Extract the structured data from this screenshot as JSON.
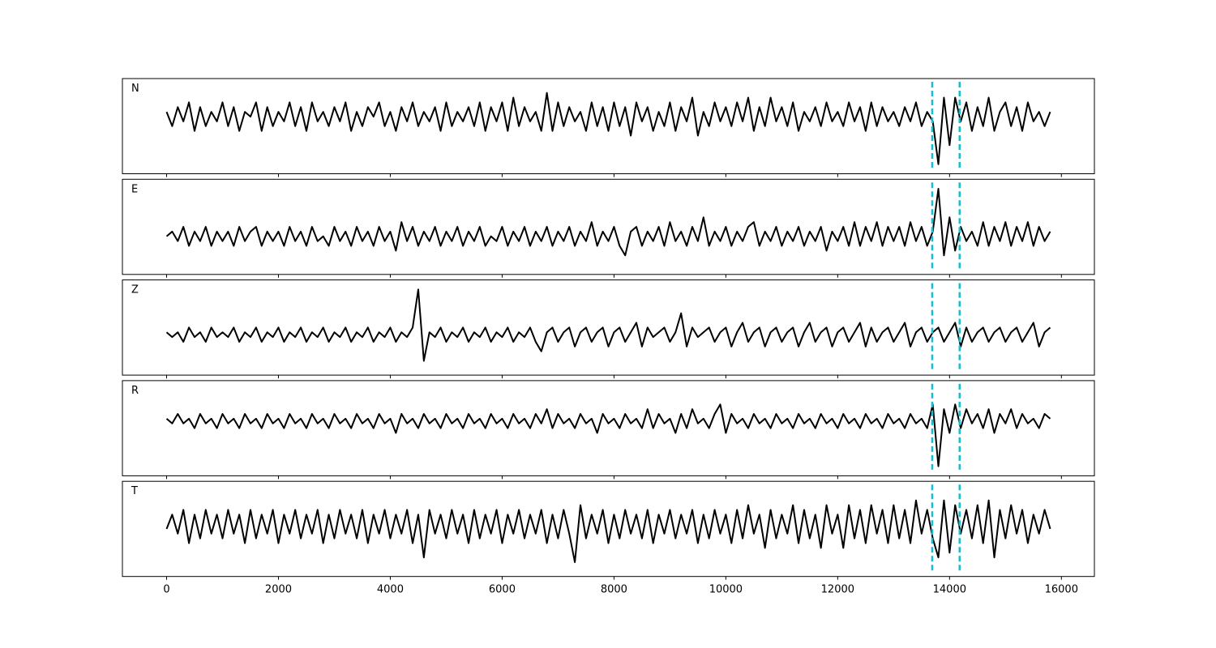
{
  "chart_data": {
    "type": "line",
    "subplots": "stacked",
    "x": [
      0,
      100,
      200,
      300,
      400,
      500,
      600,
      700,
      800,
      900,
      1000,
      1100,
      1200,
      1300,
      1400,
      1500,
      1600,
      1700,
      1800,
      1900,
      2000,
      2100,
      2200,
      2300,
      2400,
      2500,
      2600,
      2700,
      2800,
      2900,
      3000,
      3100,
      3200,
      3300,
      3400,
      3500,
      3600,
      3700,
      3800,
      3900,
      4000,
      4100,
      4200,
      4300,
      4400,
      4500,
      4600,
      4700,
      4800,
      4900,
      5000,
      5100,
      5200,
      5300,
      5400,
      5500,
      5600,
      5700,
      5800,
      5900,
      6000,
      6100,
      6200,
      6300,
      6400,
      6500,
      6600,
      6700,
      6800,
      6900,
      7000,
      7100,
      7200,
      7300,
      7400,
      7500,
      7600,
      7700,
      7800,
      7900,
      8000,
      8100,
      8200,
      8300,
      8400,
      8500,
      8600,
      8700,
      8800,
      8900,
      9000,
      9100,
      9200,
      9300,
      9400,
      9500,
      9600,
      9700,
      9800,
      9900,
      10000,
      10100,
      10200,
      10300,
      10400,
      10500,
      10600,
      10700,
      10800,
      10900,
      11000,
      11100,
      11200,
      11300,
      11400,
      11500,
      11600,
      11700,
      11800,
      11900,
      12000,
      12100,
      12200,
      12300,
      12400,
      12500,
      12600,
      12700,
      12800,
      12900,
      13000,
      13100,
      13200,
      13300,
      13400,
      13500,
      13600,
      13700,
      13800,
      13900,
      14000,
      14100,
      14200,
      14300,
      14400,
      14500,
      14600,
      14700,
      14800,
      14900,
      15000,
      15100,
      15200,
      15300,
      15400,
      15500,
      15600,
      15700,
      15800
    ],
    "series": [
      {
        "name": "N",
        "color": "#000000",
        "values": [
          3,
          0,
          4,
          1,
          5,
          -1,
          4,
          0,
          3,
          1,
          5,
          0,
          4,
          -1,
          3,
          2,
          5,
          -1,
          4,
          0,
          3,
          1,
          5,
          0,
          4,
          -1,
          5,
          1,
          3,
          0,
          4,
          1,
          5,
          -1,
          3,
          0,
          4,
          2,
          5,
          0,
          3,
          -1,
          4,
          1,
          5,
          0,
          3,
          1,
          4,
          -1,
          5,
          0,
          3,
          1,
          4,
          0,
          5,
          -1,
          4,
          1,
          5,
          -1,
          6,
          0,
          4,
          1,
          3,
          -1,
          7,
          -1,
          5,
          0,
          4,
          1,
          3,
          -1,
          5,
          0,
          4,
          -1,
          5,
          0,
          4,
          -2,
          5,
          1,
          4,
          -1,
          3,
          0,
          5,
          -1,
          4,
          1,
          6,
          -2,
          3,
          0,
          5,
          1,
          4,
          0,
          5,
          1,
          6,
          -1,
          4,
          0,
          6,
          1,
          4,
          0,
          5,
          -1,
          3,
          1,
          4,
          0,
          5,
          1,
          3,
          0,
          5,
          1,
          4,
          -1,
          5,
          0,
          4,
          1,
          3,
          0,
          4,
          1,
          5,
          0,
          3,
          1,
          -8,
          6,
          -4,
          6,
          1,
          5,
          -1,
          4,
          0,
          6,
          -1,
          3,
          5,
          0,
          4,
          -1,
          5,
          1,
          3,
          0,
          3
        ]
      },
      {
        "name": "E",
        "color": "#000000",
        "values": [
          -2,
          -1,
          -3,
          0,
          -4,
          -1,
          -3,
          0,
          -4,
          -1,
          -3,
          -1,
          -4,
          0,
          -3,
          -1,
          0,
          -4,
          -1,
          -3,
          -1,
          -4,
          0,
          -3,
          -1,
          -4,
          0,
          -3,
          -2,
          -4,
          0,
          -3,
          -1,
          -4,
          0,
          -3,
          -1,
          -4,
          0,
          -3,
          -1,
          -5,
          1,
          -3,
          0,
          -4,
          -1,
          -3,
          0,
          -4,
          -1,
          -3,
          0,
          -4,
          -1,
          -3,
          0,
          -4,
          -2,
          -3,
          0,
          -4,
          -1,
          -3,
          0,
          -4,
          -1,
          -3,
          0,
          -4,
          -1,
          -3,
          0,
          -4,
          -1,
          -3,
          1,
          -4,
          -1,
          -3,
          0,
          -4,
          -6,
          -1,
          0,
          -4,
          -1,
          -3,
          0,
          -4,
          1,
          -3,
          -1,
          -4,
          0,
          -3,
          2,
          -4,
          -1,
          -3,
          0,
          -4,
          -1,
          -3,
          0,
          1,
          -4,
          -1,
          -3,
          0,
          -4,
          -1,
          -3,
          0,
          -4,
          -1,
          -3,
          0,
          -5,
          -1,
          -3,
          0,
          -4,
          1,
          -4,
          0,
          -3,
          1,
          -4,
          0,
          -3,
          0,
          -4,
          1,
          -3,
          0,
          -4,
          -1,
          8,
          -6,
          2,
          -5,
          0,
          -3,
          -1,
          -4,
          1,
          -4,
          0,
          -3,
          1,
          -4,
          0,
          -3,
          1,
          -4,
          0,
          -3,
          -1
        ]
      },
      {
        "name": "Z",
        "color": "#000000",
        "values": [
          -1,
          -2,
          -1,
          -3,
          0,
          -2,
          -1,
          -3,
          0,
          -2,
          -1,
          -2,
          0,
          -3,
          -1,
          -2,
          0,
          -3,
          -1,
          -2,
          0,
          -3,
          -1,
          -2,
          0,
          -3,
          -1,
          -2,
          0,
          -3,
          -1,
          -2,
          0,
          -3,
          -1,
          -2,
          0,
          -3,
          -1,
          -2,
          0,
          -3,
          -1,
          -2,
          0,
          8,
          -7,
          -1,
          -2,
          0,
          -3,
          -1,
          -2,
          0,
          -3,
          -1,
          -2,
          0,
          -3,
          -1,
          -2,
          0,
          -3,
          -1,
          -2,
          0,
          -3,
          -5,
          -1,
          0,
          -3,
          -1,
          0,
          -4,
          -1,
          0,
          -3,
          -1,
          0,
          -4,
          -1,
          0,
          -3,
          -1,
          1,
          -4,
          0,
          -2,
          -1,
          0,
          -3,
          -1,
          3,
          -4,
          0,
          -2,
          -1,
          0,
          -3,
          -1,
          0,
          -4,
          -1,
          1,
          -3,
          -1,
          0,
          -4,
          -1,
          0,
          -3,
          -1,
          0,
          -4,
          -1,
          1,
          -3,
          -1,
          0,
          -4,
          -1,
          0,
          -3,
          -1,
          1,
          -4,
          0,
          -3,
          -1,
          0,
          -3,
          -1,
          1,
          -4,
          -1,
          0,
          -3,
          -1,
          0,
          -3,
          -1,
          1,
          -4,
          0,
          -3,
          -1,
          0,
          -3,
          -1,
          0,
          -3,
          -1,
          0,
          -3,
          -1,
          1,
          -4,
          -1,
          0
        ]
      },
      {
        "name": "R",
        "color": "#000000",
        "values": [
          2,
          1,
          3,
          1,
          2,
          0,
          3,
          1,
          2,
          0,
          3,
          1,
          2,
          0,
          3,
          1,
          2,
          0,
          3,
          1,
          2,
          0,
          3,
          1,
          2,
          0,
          3,
          1,
          2,
          0,
          3,
          1,
          2,
          0,
          3,
          1,
          2,
          0,
          3,
          1,
          2,
          -1,
          3,
          1,
          2,
          0,
          3,
          1,
          2,
          0,
          3,
          1,
          2,
          0,
          3,
          1,
          2,
          0,
          3,
          1,
          2,
          0,
          3,
          1,
          2,
          0,
          3,
          1,
          4,
          0,
          3,
          1,
          2,
          0,
          3,
          1,
          2,
          -1,
          3,
          1,
          2,
          0,
          3,
          1,
          2,
          0,
          4,
          0,
          3,
          1,
          2,
          -1,
          3,
          0,
          4,
          1,
          2,
          0,
          3,
          5,
          -1,
          3,
          1,
          2,
          0,
          3,
          1,
          2,
          0,
          3,
          1,
          2,
          0,
          3,
          1,
          2,
          0,
          3,
          1,
          2,
          0,
          3,
          1,
          2,
          0,
          3,
          1,
          2,
          0,
          3,
          1,
          2,
          0,
          3,
          1,
          2,
          0,
          5,
          -8,
          4,
          -1,
          5,
          0,
          4,
          1,
          3,
          0,
          4,
          -1,
          3,
          1,
          4,
          0,
          3,
          1,
          2,
          0,
          3,
          2
        ]
      },
      {
        "name": "T",
        "color": "#000000",
        "values": [
          0,
          3,
          -1,
          4,
          -3,
          3,
          -2,
          4,
          -1,
          3,
          -2,
          4,
          -1,
          3,
          -3,
          4,
          -2,
          3,
          -1,
          4,
          -3,
          3,
          -1,
          4,
          -2,
          3,
          -1,
          4,
          -3,
          3,
          -2,
          4,
          -1,
          3,
          -2,
          4,
          -3,
          3,
          -1,
          4,
          -2,
          3,
          -1,
          4,
          -3,
          3,
          -6,
          4,
          -1,
          3,
          -2,
          4,
          -1,
          3,
          -3,
          4,
          -2,
          3,
          -1,
          4,
          -3,
          3,
          -1,
          4,
          -2,
          3,
          -1,
          4,
          -3,
          3,
          -2,
          4,
          -1,
          -7,
          5,
          -2,
          3,
          -1,
          4,
          -3,
          3,
          -2,
          4,
          -1,
          3,
          -2,
          4,
          -3,
          3,
          -1,
          4,
          -2,
          3,
          -1,
          4,
          -3,
          3,
          -2,
          4,
          -1,
          3,
          -3,
          4,
          -2,
          5,
          -1,
          3,
          -4,
          4,
          -2,
          3,
          -1,
          5,
          -3,
          4,
          -2,
          3,
          -4,
          5,
          -1,
          3,
          -4,
          5,
          -2,
          4,
          -3,
          5,
          -1,
          4,
          -3,
          5,
          -2,
          4,
          -3,
          6,
          -1,
          4,
          -2,
          -6,
          6,
          -5,
          5,
          -1,
          4,
          -2,
          5,
          -3,
          6,
          -6,
          4,
          -2,
          5,
          -1,
          4,
          -3,
          3,
          -1,
          4,
          0
        ]
      }
    ],
    "xlim": [
      -790,
      16590
    ],
    "xticks": [
      0,
      2000,
      4000,
      6000,
      8000,
      10000,
      12000,
      14000,
      16000
    ],
    "ylim": [
      -10,
      10
    ],
    "vlines": [
      13690,
      14180
    ],
    "vline_color": "#17becf",
    "vline_style": "dashed"
  }
}
